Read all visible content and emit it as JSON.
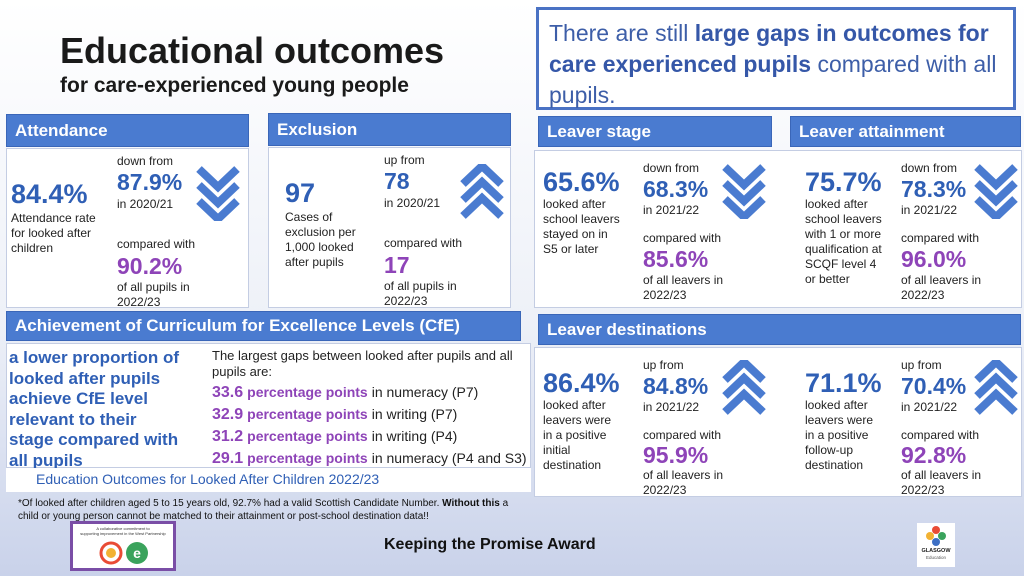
{
  "title": "Educational outcomes",
  "subtitle": "for care-experienced young people",
  "callout": {
    "t1": "There are still ",
    "b1": "large gaps in outcomes for care experienced pupils",
    "t2": " compared with all pupils."
  },
  "attendance": {
    "header": "Attendance",
    "big": "84.4%",
    "desc": [
      "Attendance rate",
      "for looked after",
      "children"
    ],
    "trend": "down from",
    "prev": "87.9%",
    "prev_year": "in 2020/21",
    "compare": "compared with",
    "all": "90.2%",
    "all_desc": [
      "of all pupils in",
      "2022/23"
    ]
  },
  "exclusion": {
    "header": "Exclusion",
    "big": "97",
    "desc": [
      "Cases of",
      "exclusion per",
      "1,000 looked",
      "after pupils"
    ],
    "trend": "up from",
    "prev": "78",
    "prev_year": "in 2020/21",
    "compare": "compared with",
    "all": "17",
    "all_desc": [
      "of all pupils in",
      "2022/23"
    ]
  },
  "leaver_stage": {
    "header": "Leaver stage",
    "big": "65.6%",
    "desc": [
      "looked after",
      "school leavers",
      "stayed on in",
      "S5 or later"
    ],
    "trend": "down from",
    "prev": "68.3%",
    "prev_year": "in 2021/22",
    "compare": "compared with",
    "all": "85.6%",
    "all_desc": [
      "of all leavers in",
      "2022/23"
    ]
  },
  "leaver_attainment": {
    "header": "Leaver attainment",
    "big": "75.7%",
    "desc": [
      "looked after",
      "school leavers",
      "with 1 or more",
      "qualification at",
      "SCQF level 4",
      "or better"
    ],
    "trend": "down from",
    "prev": "78.3%",
    "prev_year": "in 2021/22",
    "compare": "compared with",
    "all": "96.0%",
    "all_desc": [
      "of all leavers in",
      "2022/23"
    ]
  },
  "cfe": {
    "header": "Achievement of Curriculum for Excellence Levels (CfE)",
    "left": [
      "a lower proportion of",
      "looked after pupils",
      "achieve CfE level",
      "relevant to their",
      "stage compared with",
      "all pupils"
    ],
    "intro": [
      "The largest gaps between looked after pupils and all",
      "pupils are:"
    ],
    "gaps": [
      {
        "n": "33.6",
        "pp": "percentage points",
        "area": "in numeracy (P7)"
      },
      {
        "n": "32.9",
        "pp": "percentage points",
        "area": "in writing (P7)"
      },
      {
        "n": "31.2",
        "pp": "percentage points",
        "area": "in writing (P4)"
      },
      {
        "n": "29.1",
        "pp": "percentage points",
        "area": "in numeracy (P4 and S3)"
      }
    ]
  },
  "destinations": {
    "header": "Leaver destinations",
    "a": {
      "big": "86.4%",
      "desc": [
        "looked after",
        "leavers were",
        "in a positive",
        "initial",
        "destination"
      ],
      "trend": "up from",
      "prev": "84.8%",
      "prev_year": "in 2021/22",
      "compare": "compared with",
      "all": "95.9%",
      "all_desc": [
        "of all leavers in",
        "2022/23"
      ]
    },
    "b": {
      "big": "71.1%",
      "desc": [
        "looked after",
        "leavers were",
        "in a positive",
        "follow-up",
        "destination"
      ],
      "trend": "up from",
      "prev": "70.4%",
      "prev_year": "in 2021/22",
      "compare": "compared with",
      "all": "92.8%",
      "all_desc": [
        "of all leavers in",
        "2022/23"
      ]
    }
  },
  "source_link": "Education Outcomes for Looked After Children 2022/23",
  "footnote": {
    "t1": "*Of looked after children aged 5 to 15 years old, 92.7% had a valid Scottish Candidate Number. ",
    "b1": "Without this",
    "t2": " a child or young person cannot be matched to their attainment or post-school destination data!!"
  },
  "award": "Keeping the Promise Award",
  "badge_text": [
    "A collaborative commitment to",
    "supporting improvement in the West Partnership"
  ],
  "glasgow_logo": [
    "GLASGOW",
    "Education"
  ],
  "colors": {
    "header_blue": "#4a7bd0",
    "stat_blue": "#2f5fb5",
    "purple": "#8e44b8"
  }
}
